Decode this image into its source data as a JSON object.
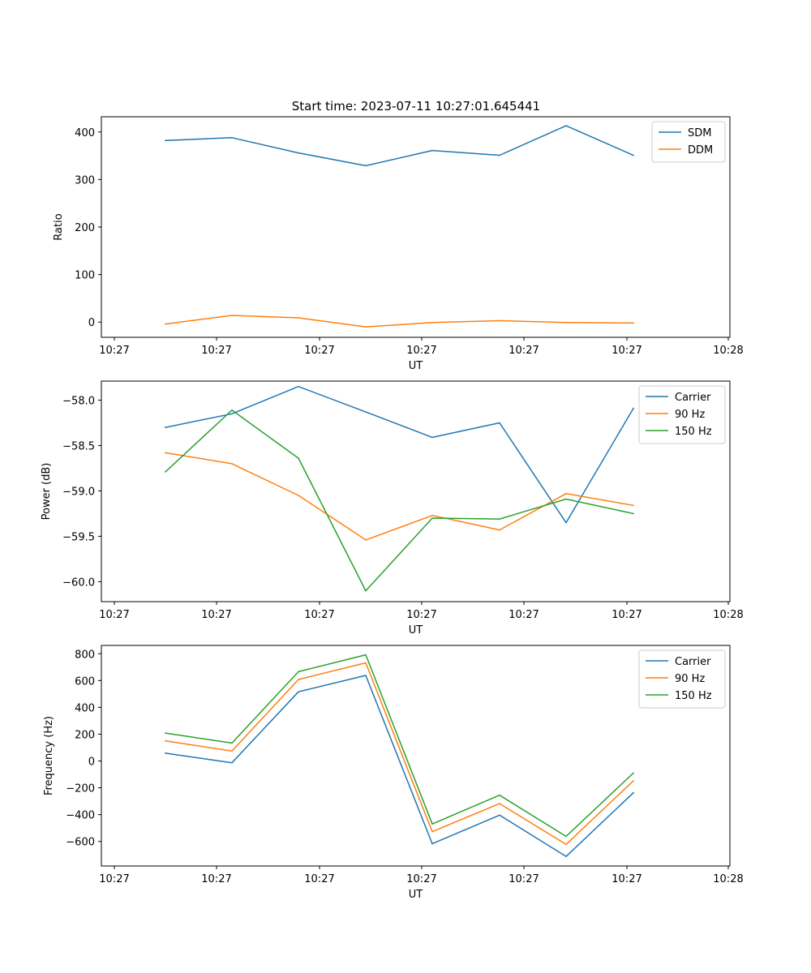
{
  "title": "Start time: 2023-07-11 10:27:01.645441",
  "colors": {
    "c0": "#1f77b4",
    "c1": "#ff7f0e",
    "c2": "#2ca02c"
  },
  "chart_data": [
    {
      "type": "line",
      "xlabel": "UT",
      "ylabel": "Ratio",
      "xtick_labels": [
        "10:27",
        "10:27",
        "10:27",
        "10:27",
        "10:27",
        "10:27",
        "10:28"
      ],
      "yticks": [
        0,
        100,
        200,
        300,
        400
      ],
      "ytick_labels": [
        "0",
        "100",
        "200",
        "300",
        "400"
      ],
      "ylim": [
        -32,
        432
      ],
      "legend_loc": "upper right",
      "series": [
        {
          "name": "SDM",
          "color": "#1f77b4",
          "values": [
            382,
            388,
            356,
            329,
            361,
            351,
            413,
            351
          ]
        },
        {
          "name": "DDM",
          "color": "#ff7f0e",
          "values": [
            -4,
            14,
            9,
            -10,
            -1,
            3,
            -1,
            -2
          ]
        }
      ]
    },
    {
      "type": "line",
      "xlabel": "UT",
      "ylabel": "Power (dB)",
      "xtick_labels": [
        "10:27",
        "10:27",
        "10:27",
        "10:27",
        "10:27",
        "10:27",
        "10:28"
      ],
      "yticks": [
        -58.0,
        -58.5,
        -59.0,
        -59.5,
        -60.0
      ],
      "ytick_labels": [
        "−58.0",
        "−58.5",
        "−59.0",
        "−59.5",
        "−60.0"
      ],
      "ylim": [
        -60.22,
        -57.79
      ],
      "legend_loc": "upper right",
      "series": [
        {
          "name": "Carrier",
          "color": "#1f77b4",
          "values": [
            -58.3,
            -58.15,
            -57.85,
            -58.13,
            -58.41,
            -58.25,
            -59.35,
            -58.09
          ]
        },
        {
          "name": "90 Hz",
          "color": "#ff7f0e",
          "values": [
            -58.58,
            -58.7,
            -59.05,
            -59.54,
            -59.27,
            -59.43,
            -59.03,
            -59.16
          ]
        },
        {
          "name": "150 Hz",
          "color": "#2ca02c",
          "values": [
            -58.79,
            -58.11,
            -58.64,
            -60.1,
            -59.3,
            -59.31,
            -59.09,
            -59.25
          ]
        }
      ]
    },
    {
      "type": "line",
      "xlabel": "UT",
      "ylabel": "Frequency (Hz)",
      "xtick_labels": [
        "10:27",
        "10:27",
        "10:27",
        "10:27",
        "10:27",
        "10:27",
        "10:28"
      ],
      "yticks": [
        800,
        600,
        400,
        200,
        0,
        -200,
        -400,
        -600
      ],
      "ytick_labels": [
        "800",
        "600",
        "400",
        "200",
        "0",
        "−200",
        "−400",
        "−600"
      ],
      "ylim": [
        -783,
        862
      ],
      "legend_loc": "upper right",
      "series": [
        {
          "name": "Carrier",
          "color": "#1f77b4",
          "values": [
            58,
            -13,
            516,
            638,
            -617,
            -404,
            -712,
            -237
          ]
        },
        {
          "name": "90 Hz",
          "color": "#ff7f0e",
          "values": [
            150,
            74,
            608,
            732,
            -527,
            -318,
            -622,
            -148
          ]
        },
        {
          "name": "150 Hz",
          "color": "#2ca02c",
          "values": [
            208,
            134,
            666,
            792,
            -470,
            -255,
            -562,
            -90
          ]
        }
      ]
    }
  ]
}
